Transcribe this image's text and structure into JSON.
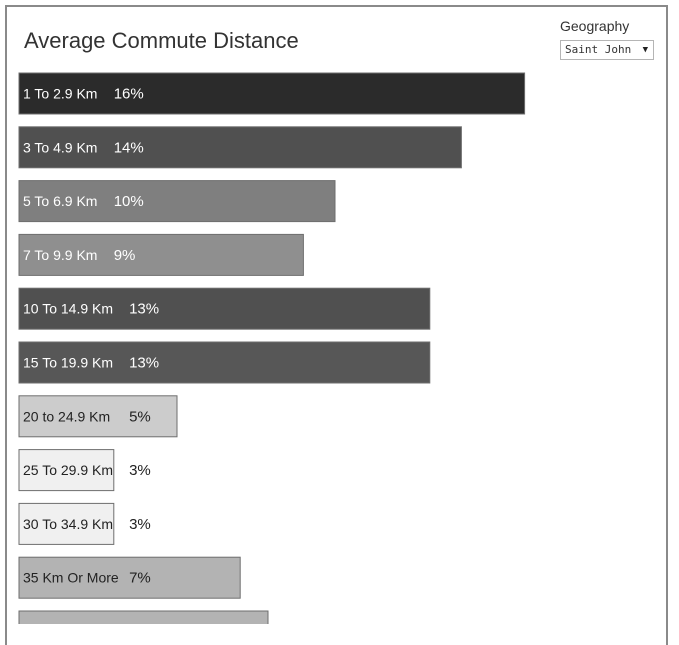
{
  "filter": {
    "label": "Geography",
    "selected": "Saint John"
  },
  "chart_data": {
    "type": "bar",
    "orientation": "horizontal",
    "title": "Average Commute Distance",
    "categories": [
      "1 To 2.9 Km",
      "3 To 4.9 Km",
      "5 To 6.9 Km",
      "7 To 9.9 Km",
      "10 To 14.9 Km",
      "15 To 19.9 Km",
      "20 to 24.9 Km",
      "25 To 29.9 Km",
      "30 To 34.9 Km",
      "35 Km Or More",
      ""
    ],
    "values": [
      16,
      14,
      10,
      9,
      13,
      13,
      5,
      3,
      3,
      7,
      null
    ],
    "value_labels": [
      "16%",
      "14%",
      "10%",
      "9%",
      "13%",
      "13%",
      "5%",
      "3%",
      "3%",
      "7%",
      ""
    ],
    "colors": [
      "#2b2b2b",
      "#505050",
      "#7f7f7f",
      "#8f8f8f",
      "#505050",
      "#575757",
      "#cccccc",
      "#f0f0f0",
      "#f0f0f0",
      "#b3b3b3",
      "#b3b3b3"
    ],
    "label_colors": [
      "#ffffff",
      "#ffffff",
      "#ffffff",
      "#ffffff",
      "#ffffff",
      "#ffffff",
      "#222222",
      "#222222",
      "#222222",
      "#222222",
      "#222222"
    ]
  }
}
